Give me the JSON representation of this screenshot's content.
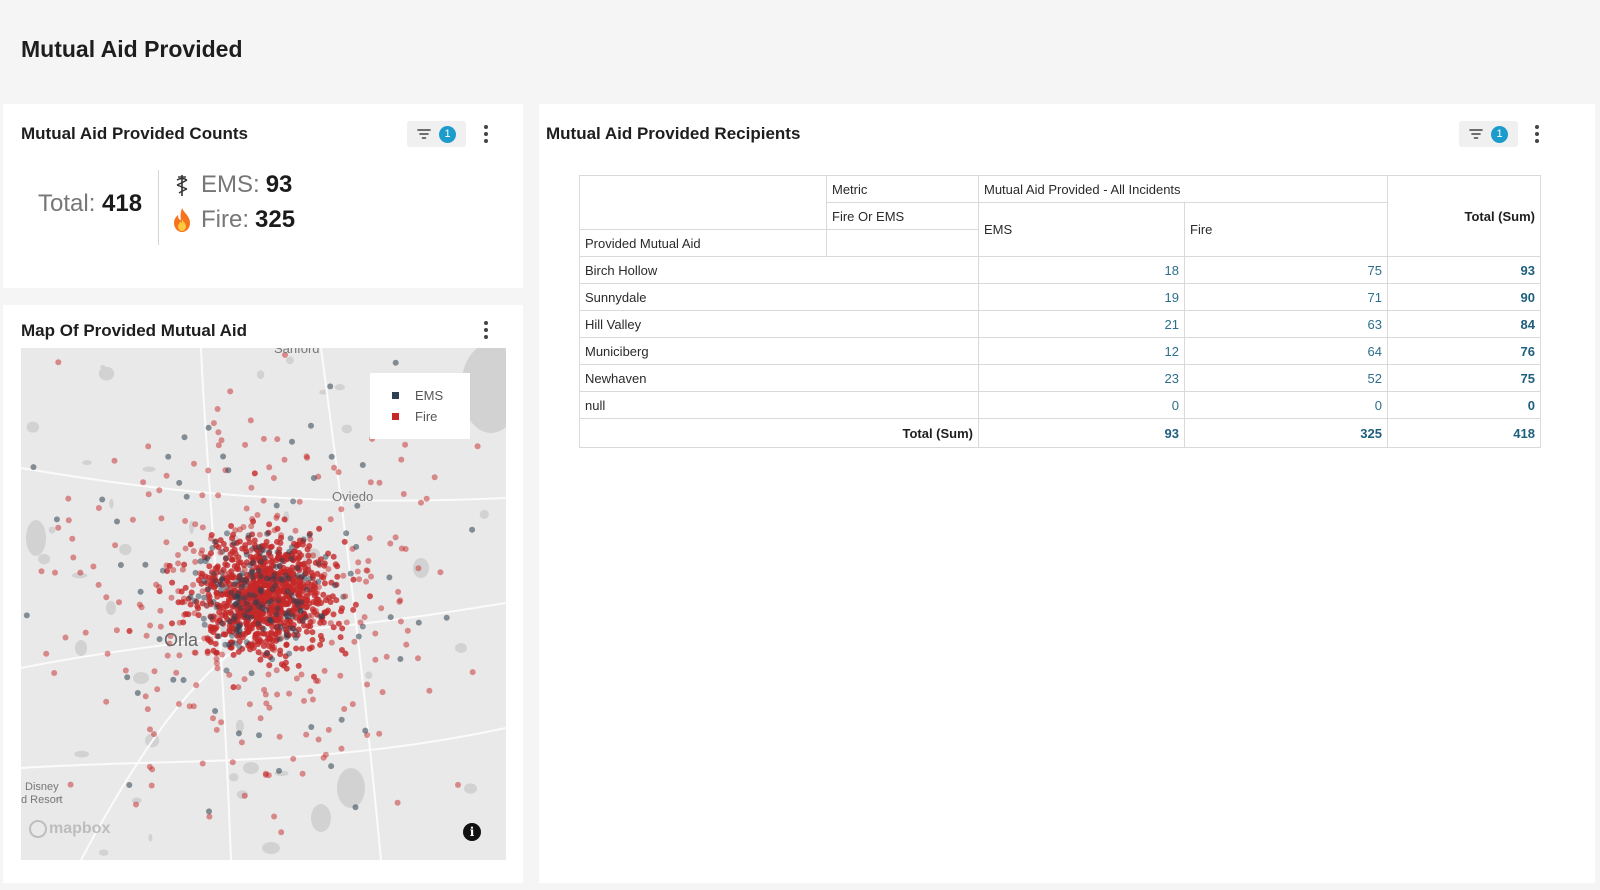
{
  "page": {
    "title": "Mutual Aid Provided"
  },
  "counts_panel": {
    "title": "Mutual Aid Provided Counts",
    "filter_count": "1",
    "total_label": "Total:",
    "total_value": "418",
    "ems_label": "EMS:",
    "ems_value": "93",
    "fire_label": "Fire:",
    "fire_value": "325",
    "icons": {
      "ems": "caduceus-icon",
      "fire": "fire-icon",
      "filter": "filter-icon",
      "menu": "kebab-menu-icon"
    }
  },
  "map_panel": {
    "title": "Map Of Provided Mutual Aid",
    "legend": [
      {
        "label": "EMS",
        "color": "#2e3f4f"
      },
      {
        "label": "Fire",
        "color": "#c62828"
      }
    ],
    "place_labels": {
      "sanford": "Sanford",
      "oviedo": "Oviedo",
      "orlando": "Orla",
      "disney": "Disney",
      "resort": "d Resort"
    },
    "attribution": "mapbox",
    "info_label": "i"
  },
  "recipients_panel": {
    "title": "Mutual Aid Provided Recipients",
    "filter_count": "1",
    "table": {
      "metric_label": "Metric",
      "metric_value": "Mutual Aid Provided - All Incidents",
      "fire_or_ems_label": "Fire Or EMS",
      "row_dimension_label": "Provided Mutual Aid",
      "columns": [
        "EMS",
        "Fire"
      ],
      "total_column_label": "Total (Sum)",
      "rows": [
        {
          "name": "Birch Hollow",
          "ems": "18",
          "fire": "75",
          "total": "93"
        },
        {
          "name": "Sunnydale",
          "ems": "19",
          "fire": "71",
          "total": "90"
        },
        {
          "name": "Hill Valley",
          "ems": "21",
          "fire": "63",
          "total": "84"
        },
        {
          "name": "Municiberg",
          "ems": "12",
          "fire": "64",
          "total": "76"
        },
        {
          "name": "Newhaven",
          "ems": "23",
          "fire": "52",
          "total": "75"
        },
        {
          "name": "null",
          "ems": "0",
          "fire": "0",
          "total": "0"
        }
      ],
      "total_row": {
        "label": "Total (Sum)",
        "ems": "93",
        "fire": "325",
        "total": "418"
      }
    }
  }
}
